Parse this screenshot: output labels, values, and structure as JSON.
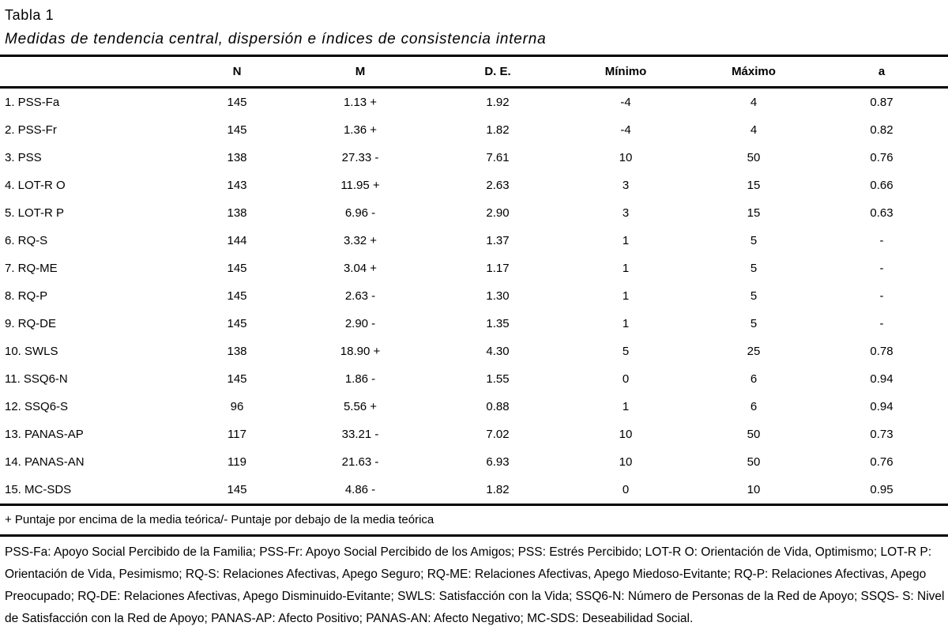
{
  "header": {
    "table_number": "Tabla 1",
    "table_title": "Medidas de tendencia central, dispersión e índices de consistencia interna"
  },
  "table": {
    "columns": [
      "",
      "N",
      "M",
      "D. E.",
      "Mínimo",
      "Máximo",
      "a"
    ],
    "rows": [
      [
        "1. PSS-Fa",
        "145",
        "1.13 +",
        "1.92",
        "-4",
        "4",
        "0.87"
      ],
      [
        "2. PSS-Fr",
        "145",
        "1.36 +",
        "1.82",
        "-4",
        "4",
        "0.82"
      ],
      [
        "3. PSS",
        "138",
        "27.33 -",
        "7.61",
        "10",
        "50",
        "0.76"
      ],
      [
        "4. LOT-R O",
        "143",
        "11.95 +",
        "2.63",
        "3",
        "15",
        "0.66"
      ],
      [
        "5. LOT-R P",
        "138",
        "6.96 -",
        "2.90",
        "3",
        "15",
        "0.63"
      ],
      [
        "6. RQ-S",
        "144",
        "3.32 +",
        "1.37",
        "1",
        "5",
        "-"
      ],
      [
        "7. RQ-ME",
        "145",
        "3.04 +",
        "1.17",
        "1",
        "5",
        "-"
      ],
      [
        "8. RQ-P",
        "145",
        "2.63 -",
        "1.30",
        "1",
        "5",
        "-"
      ],
      [
        "9. RQ-DE",
        "145",
        "2.90 -",
        "1.35",
        "1",
        "5",
        "-"
      ],
      [
        "10. SWLS",
        "138",
        "18.90 +",
        "4.30",
        "5",
        "25",
        "0.78"
      ],
      [
        "11. SSQ6-N",
        "145",
        "1.86 -",
        "1.55",
        "0",
        "6",
        "0.94"
      ],
      [
        "12. SSQ6-S",
        "96",
        "5.56 +",
        "0.88",
        "1",
        "6",
        "0.94"
      ],
      [
        "13. PANAS-AP",
        "117",
        "33.21 -",
        "7.02",
        "10",
        "50",
        "0.73"
      ],
      [
        "14. PANAS-AN",
        "119",
        "21.63 -",
        "6.93",
        "10",
        "50",
        "0.76"
      ],
      [
        "15. MC-SDS",
        "145",
        "4.86 -",
        "1.82",
        "0",
        "10",
        "0.95"
      ]
    ]
  },
  "notes": {
    "sign_note": "+ Puntaje por encima de la media teórica/- Puntaje por debajo de la media teórica",
    "abbreviations": "PSS-Fa: Apoyo Social Percibido de la Familia; PSS-Fr: Apoyo Social Percibido de los Amigos; PSS: Estrés Percibido; LOT-R O: Orientación de Vida, Optimismo; LOT-R P: Orientación de Vida, Pesimismo; RQ-S: Relaciones Afectivas, Apego Seguro; RQ-ME: Relaciones Afectivas, Apego Miedoso-Evitante; RQ-P: Relaciones Afectivas, Apego Preocupado; RQ-DE: Relaciones Afectivas, Apego Disminuido-Evitante; SWLS: Satisfacción con la Vida; SSQ6-N: Número de Personas de la Red de Apoyo; SSQS- S: Nivel de Satisfacción con la Red de Apoyo; PANAS-AP: Afecto Positivo; PANAS-AN: Afecto Negativo; MC-SDS: Deseabilidad Social."
  },
  "colors": {
    "text": "#000000",
    "background": "#ffffff",
    "rule": "#000000"
  }
}
